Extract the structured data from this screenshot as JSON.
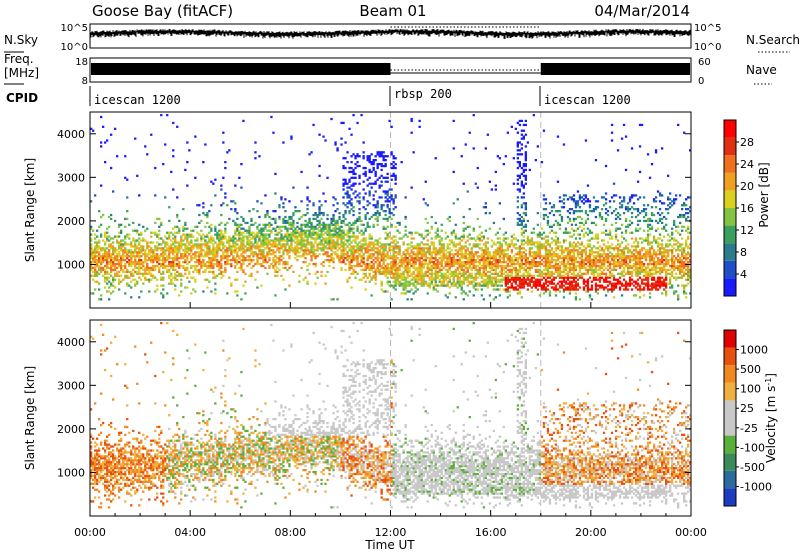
{
  "header": {
    "station": "Goose Bay (fitACF)",
    "beam": "Beam 01",
    "date": "04/Mar/2014"
  },
  "noise_panel": {
    "left_label": "N.Sky",
    "right_label": "N.Search",
    "left_ticks": [
      "10^5",
      "10^0"
    ],
    "right_ticks": [
      "10^5",
      "10^0"
    ]
  },
  "freq_panel": {
    "left_label_line1": "Freq.",
    "left_label_line2": "[MHz]",
    "right_label": "Nave",
    "left_ticks": [
      "18",
      "8"
    ],
    "right_ticks": [
      "60",
      "0"
    ],
    "cpid_label": "CPID"
  },
  "cpid_segments": [
    {
      "name": "icescan 1200",
      "start_hour": 0
    },
    {
      "name": "rbsp 200",
      "start_hour": 12
    },
    {
      "name": "icescan 1200",
      "start_hour": 18
    }
  ],
  "chart_data": [
    {
      "type": "heatmap",
      "title": "",
      "xlabel": "Time UT",
      "ylabel": "Slant Range [km]",
      "xlim_hours": [
        0,
        24
      ],
      "x_ticks": [
        "00:00",
        "04:00",
        "08:00",
        "12:00",
        "16:00",
        "20:00",
        "00:00"
      ],
      "ylim": [
        0,
        4500
      ],
      "y_ticks": [
        1000,
        2000,
        3000,
        4000
      ],
      "colorbar": {
        "label": "Power [dB]",
        "ticks": [
          4,
          8,
          12,
          16,
          20,
          24,
          28
        ],
        "colors": [
          "#1a1aff",
          "#1e4fc8",
          "#2a7c8c",
          "#3aa060",
          "#84c440",
          "#d9d020",
          "#f0a020",
          "#f07020",
          "#e03010",
          "#ff0000"
        ]
      }
    },
    {
      "type": "heatmap",
      "title": "",
      "xlabel": "Time UT",
      "ylabel": "Slant Range [km]",
      "xlim_hours": [
        0,
        24
      ],
      "x_ticks": [
        "00:00",
        "04:00",
        "08:00",
        "12:00",
        "16:00",
        "20:00",
        "00:00"
      ],
      "ylim": [
        0,
        4500
      ],
      "y_ticks": [
        1000,
        2000,
        3000,
        4000
      ],
      "colorbar": {
        "label": "Velocity [m s^-1]",
        "ticks": [
          "1000",
          "500",
          "100",
          "25",
          "-25",
          "-100",
          "-500",
          "-1000"
        ],
        "colors": [
          "#1e3cc0",
          "#2d6b9e",
          "#3a8a5a",
          "#5ab038",
          "#c8c8c8",
          "#c8c8c8",
          "#f0b040",
          "#f08a20",
          "#e85010",
          "#e00000"
        ]
      }
    }
  ]
}
